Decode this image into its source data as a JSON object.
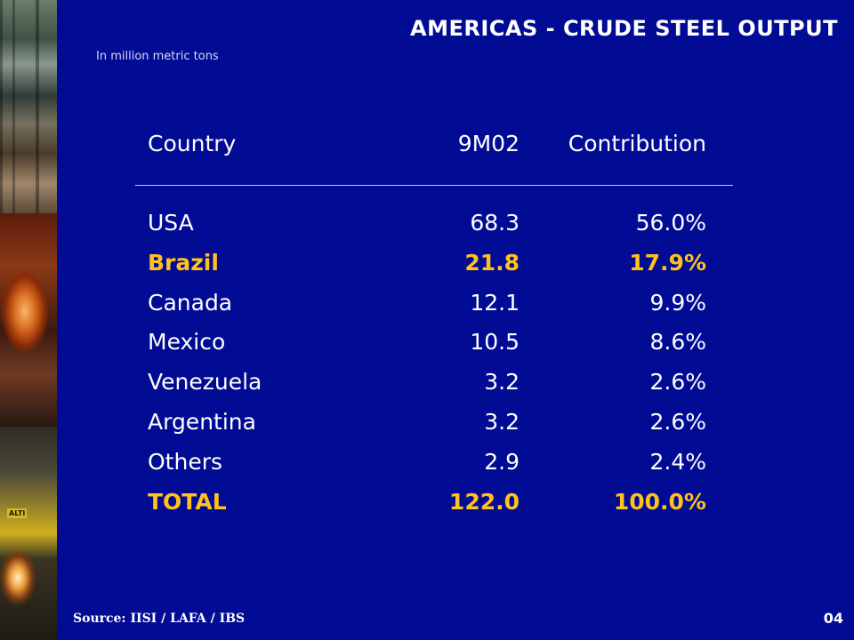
{
  "slide": {
    "title": "AMERICAS - CRUDE STEEL OUTPUT",
    "subtitle": "In million metric tons",
    "source": "Source: IISI / LAFA / IBS",
    "page_number": "04",
    "photo_label": "ALTI",
    "colors": {
      "background": "#010b94",
      "text": "#ffffff",
      "highlight": "#ffc21c"
    }
  },
  "chart_data": {
    "type": "table",
    "columns": [
      "Country",
      "9M02",
      "Contribution"
    ],
    "rows": [
      {
        "country": "USA",
        "value": "68.3",
        "contribution": "56.0%",
        "highlight": false
      },
      {
        "country": "Brazil",
        "value": "21.8",
        "contribution": "17.9%",
        "highlight": true
      },
      {
        "country": "Canada",
        "value": "12.1",
        "contribution": "9.9%",
        "highlight": false
      },
      {
        "country": "Mexico",
        "value": "10.5",
        "contribution": "8.6%",
        "highlight": false
      },
      {
        "country": "Venezuela",
        "value": "3.2",
        "contribution": "2.6%",
        "highlight": false
      },
      {
        "country": "Argentina",
        "value": "3.2",
        "contribution": "2.6%",
        "highlight": false
      },
      {
        "country": "Others",
        "value": "2.9",
        "contribution": "2.4%",
        "highlight": false
      },
      {
        "country": "TOTAL",
        "value": "122.0",
        "contribution": "100.0%",
        "highlight": true
      }
    ]
  }
}
